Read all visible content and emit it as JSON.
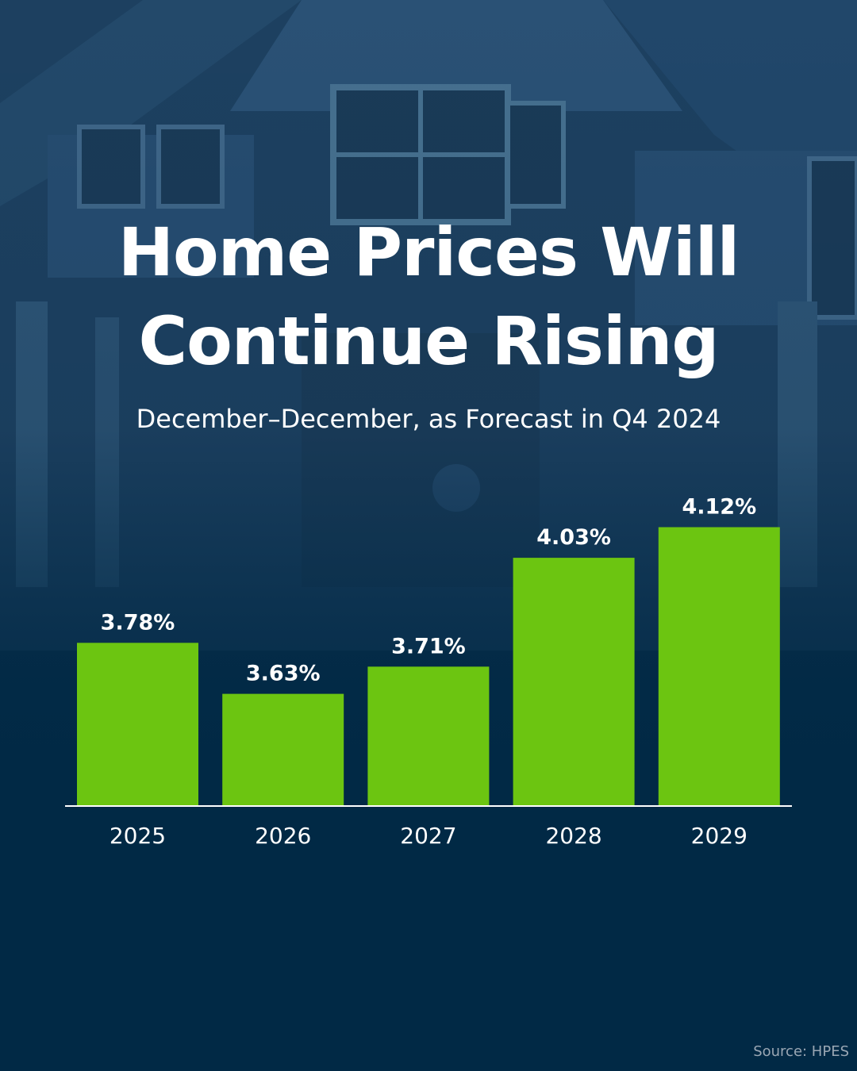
{
  "header": {
    "title_line1": "Home Prices Will",
    "title_line2": "Continue Rising",
    "subtitle": "December–December, as Forecast in Q4 2024"
  },
  "footer": {
    "source": "Source: HPES"
  },
  "colors": {
    "background": "#012945",
    "bar": "#6cc511",
    "text": "#ffffff",
    "baseline": "#ffffff",
    "source_text": "#9aa7b4"
  },
  "chart_data": {
    "type": "bar",
    "title": "Home Prices Will Continue Rising",
    "subtitle": "December–December, as Forecast in Q4 2024",
    "categories": [
      "2025",
      "2026",
      "2027",
      "2028",
      "2029"
    ],
    "values": [
      3.78,
      3.63,
      3.71,
      4.03,
      4.12
    ],
    "value_labels": [
      "3.78%",
      "3.63%",
      "3.71%",
      "4.03%",
      "4.12%"
    ],
    "unit": "%",
    "ylim": [
      3.3,
      4.25
    ],
    "grid": false,
    "legend": "none",
    "xlabel": "",
    "ylabel": ""
  }
}
